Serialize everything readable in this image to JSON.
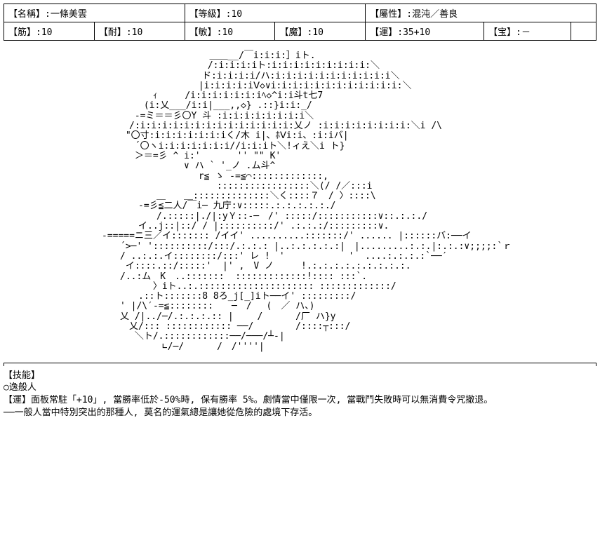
{
  "header": {
    "name_label": "【名稱】:",
    "name_value": "一條美雲",
    "rank_label": "【等級】:",
    "rank_value": "10",
    "attr_label": "【屬性】:",
    "attr_value": "混沌／善良"
  },
  "stats": {
    "str_label": "【筋】:",
    "str_value": "10",
    "end_label": "【耐】:",
    "end_value": "10",
    "agi_label": "【敏】:",
    "agi_value": "10",
    "mag_label": "【魔】:",
    "mag_value": "10",
    "luk_label": "【運】:",
    "luk_value": "35+10",
    "np_label": "【宝】:",
    "np_value": "－"
  },
  "ascii": "　　　　　　　　　　   ＿＿__/￣i:i:i:］iト.\n　　　　　　　　　　　 /:i:i:i:iト:i:i:i:i:i:i:i:i:i:＼\n　　　　　　　　　　　ド:i:i:i:i/ハ:i:i:i:i:i:i:i:i:i:i:i＼\n　　　　　　　　　　 |i:i:i:i:iⅤ◇∨i:i:i:i:i:i:i:i:i:i:i:i:＼\n　　　　　 ｨ　　　/i:i:i:i:i:i:iﾍ◇^i:i斗t七7\n　　　　 (i:乂___/i:i|___,,◇} .::}i:i:_/\n　　　 -=ミ＝＝彡〇Y 斗 :i:i:i:i:i:i:i:i＼\n　　　/:i:i:i:i:i:i:i:i:i:i:i:i:i:i:乂ノ :i:i:i:i:i:i:i:i:＼i /\\\n　　 \"〇寸:i:i:i:i:i:i:iく/木 i|、ﾎⅤi:i、:i:iバ|\n　　　 ´〇ヽi:i:i:i:i:i:i//i:i:iト＼!ィえ＼i ト}\n　　　 ＞＝=彡 ^ i:'　　　　'' \"\" K'\n　　　　　　　　　∨ ハ ` '_ノ .ム斗^\n　　　　　　　　　　 r≦ ゝ -=≦⌒:::::::::::::,\n　　　　　　　　　　　　 :::::::::::::::::＼(/ /／:::i\n　　　　　　＿　　＿::::::::::::::＼く::::７　/ 〉::::\\\n　　　　-=彡≦二人/￣i─ 九庁:∨:::::.:.:.:.:.:./\n　　　　　　/.:::::|./|:yＹ::-─　/' :::::/:::::::::::∨::.:.:./\n　　　　イ..j::|::/ / |::::::::::/' .:.:.:/:::::::::∨.\n-=====ニ三／イ::::::: /イイ' ..........:::::::/' ...... |::::::バ:──イ\n　　´>─' '::::::::::/:::/.:.:.: |..:.:.:.:.:|　|.........:.:.|:.:.:∨;;;;:`ｒ\n　　/ ..:.:.イ::::::::/:::' レ !　'　　　　　　　'  ....:.:.:.:`──′\n　　 イ::::.::/:::::'  |' ,　V ノ　　　!.:.:.:.:.:.:.:.:.:.\n　　/..:ム　K　..:::::::  :::::::::::::!:::: :::`.\n　　 　　　〉iト..:.::::::::::::::::::::: :::::::::::::/\n　　　　.::ト:::::::8 8ろ_j[_]iト──イ' :::::::::/\n　　' |/\\′-=≦::::::::　　─　/　 (　／ ハ、)\n　　乂 /|../─/.:.:.:.:: |　　 /　　　 /厂 ハ}y\n　　　乂/::: :::::::::::: ──/　　　　 /::::┬:::/\n　　　 ＼ト/.::::::::::::──/───/┴-|\n　　　　　　 ∟/─/　　　 /　/''''|",
  "skills": {
    "title": "【技能】",
    "skill1_name": "○逸般人",
    "skill1_line1": "【運】面板常駐「+10」, 當勝率低於-50%時, 保有勝率 5%。劇情當中僅限一次, 當戰鬥失敗時可以無消費令咒撤退。",
    "skill1_line2": "──一般人當中特別突出的那種人, 莫名的運氣總是讓她從危險的處境下存活。"
  }
}
